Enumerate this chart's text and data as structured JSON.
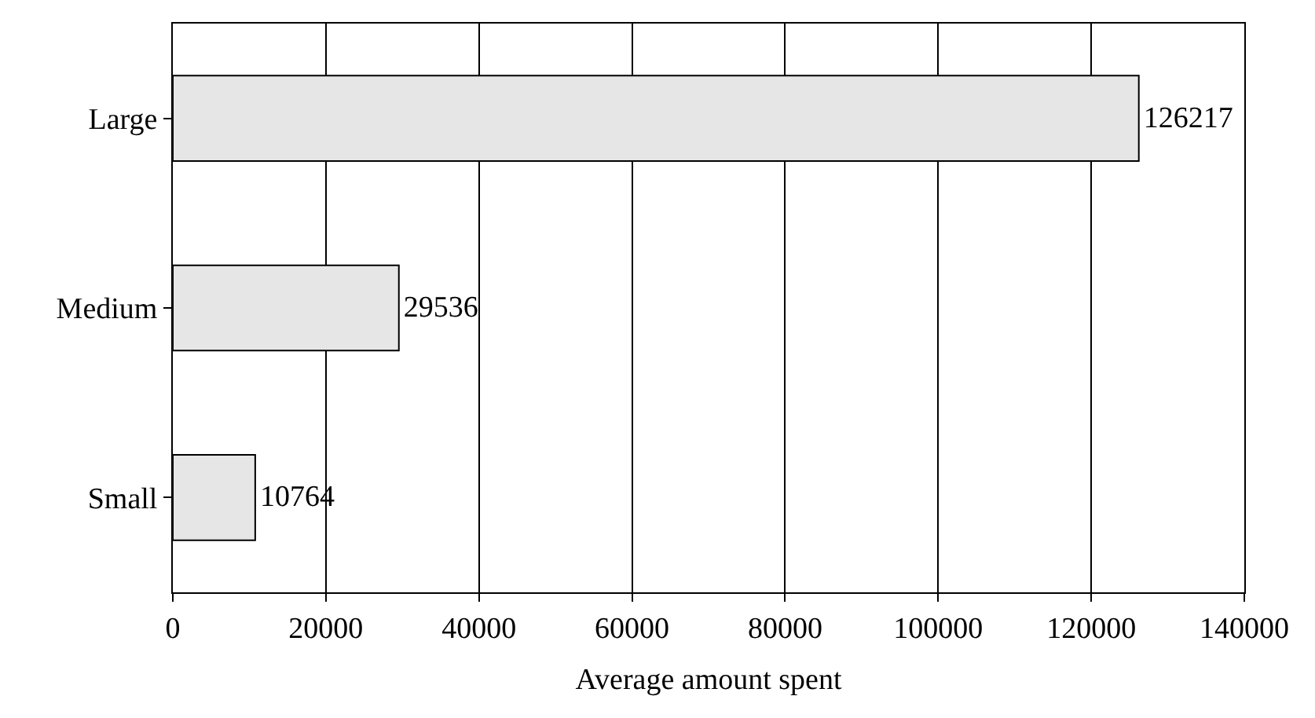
{
  "chart_data": {
    "type": "bar",
    "orientation": "horizontal",
    "xlabel": "Average amount spent",
    "categories": [
      "Large",
      "Medium",
      "Small"
    ],
    "values": [
      126217,
      29536,
      10764
    ],
    "color": "#e6e6e6",
    "xlim": [
      0,
      140000
    ],
    "xticks": [
      0,
      20000,
      40000,
      60000,
      80000,
      100000,
      120000,
      140000
    ],
    "grid": "x",
    "data_labels": true,
    "legend": false
  }
}
